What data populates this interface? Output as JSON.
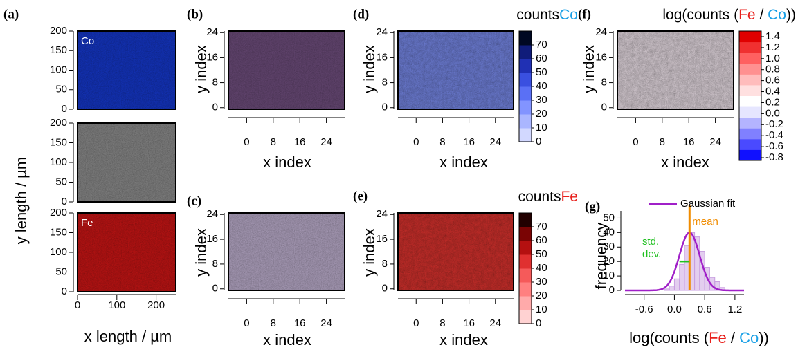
{
  "chart_data": [
    {
      "type": "image-stack",
      "tag": "(a)",
      "xlabel": "x length / µm",
      "ylabel": "y length / µm",
      "images": [
        {
          "text": "Co",
          "color": "#1436c8"
        },
        {
          "color": "#8a8a8a"
        },
        {
          "text": "Fe",
          "color": "#c81414"
        }
      ],
      "xlim": [
        0,
        250
      ],
      "ylim": [
        0,
        200
      ],
      "xticks": [
        0,
        100,
        200
      ],
      "yticks": [
        0,
        50,
        100,
        150,
        200
      ]
    },
    {
      "type": "image",
      "tag": "(b)",
      "xlabel": "x index",
      "ylabel": "y index",
      "color": "#6a4a78",
      "xlim": [
        -5.5,
        29.5
      ],
      "ylim": [
        -0.5,
        24.5
      ],
      "xticks": [
        0,
        8,
        16,
        24
      ],
      "yticks": [
        0,
        8,
        16,
        24
      ]
    },
    {
      "type": "image",
      "tag": "(c)",
      "xlabel": "x index",
      "ylabel": "y index",
      "color": "#b4a6c4",
      "xlim": [
        -5.5,
        29.5
      ],
      "ylim": [
        -0.5,
        24.5
      ],
      "xticks": [
        0,
        8,
        16,
        24
      ],
      "yticks": [
        0,
        8,
        16,
        24
      ]
    },
    {
      "type": "heatmap",
      "tag": "(d)",
      "xlabel": "x index",
      "ylabel": "y index",
      "color": "#7a8cf0",
      "title": [
        {
          "text": "counts",
          "color": "#000000"
        },
        {
          "text": "Co",
          "color": "#1aa0e6"
        }
      ],
      "xlim": [
        -5.5,
        29.5
      ],
      "ylim": [
        -0.5,
        24.5
      ],
      "xticks": [
        0,
        8,
        16,
        24
      ],
      "yticks": [
        0,
        8,
        16,
        24
      ],
      "clim": [
        0,
        80
      ],
      "cticks": [
        0,
        10,
        20,
        30,
        40,
        50,
        60,
        70
      ],
      "colors": [
        "#d2d8ff",
        "#aab6ff",
        "#8294ff",
        "#5a70f5",
        "#3a50e0",
        "#2030b4",
        "#101c7a",
        "#000822"
      ]
    },
    {
      "type": "heatmap",
      "tag": "(e)",
      "xlabel": "x index",
      "ylabel": "y index",
      "color": "#e2332e",
      "title": [
        {
          "text": "counts",
          "color": "#000000"
        },
        {
          "text": "Fe",
          "color": "#e8201c"
        }
      ],
      "xlim": [
        -5.5,
        29.5
      ],
      "ylim": [
        -0.5,
        24.5
      ],
      "xticks": [
        0,
        8,
        16,
        24
      ],
      "yticks": [
        0,
        8,
        16,
        24
      ],
      "clim": [
        0,
        80
      ],
      "cticks": [
        0,
        10,
        20,
        30,
        40,
        50,
        60,
        70
      ],
      "colors": [
        "#ffd2d2",
        "#ffaaaa",
        "#ff8080",
        "#f55a5a",
        "#e03030",
        "#b41010",
        "#7a0404",
        "#220000"
      ]
    },
    {
      "type": "heatmap",
      "tag": "(f)",
      "xlabel": "x index",
      "ylabel": "y index",
      "color": "#f2e6ee",
      "title": [
        {
          "text": "log(counts (",
          "color": "#000000"
        },
        {
          "text": "Fe",
          "color": "#e8201c"
        },
        {
          "text": " / ",
          "color": "#000000"
        },
        {
          "text": "Co",
          "color": "#1aa0e6"
        },
        {
          "text": "))",
          "color": "#000000"
        }
      ],
      "xlim": [
        -5.5,
        29.5
      ],
      "ylim": [
        -0.5,
        24.5
      ],
      "xticks": [
        0,
        8,
        16,
        24
      ],
      "yticks": [
        0,
        8,
        16,
        24
      ],
      "clim": [
        -0.85,
        1.5
      ],
      "cticks": [
        -0.8,
        -0.6,
        -0.4,
        -0.2,
        {
          "value": 0,
          "label": "0.0"
        },
        0.2,
        0.4,
        0.6,
        0.8,
        {
          "value": 1,
          "label": "1.0"
        },
        1.2,
        1.4
      ],
      "colors": [
        "#1010ff",
        "#4a4aff",
        "#8080ff",
        "#b4b4ff",
        "#e6e6ff",
        "#ffffff",
        "#ffe0e0",
        "#ffbcbc",
        "#ff9090",
        "#ff6060",
        "#f03030",
        "#e00000"
      ]
    },
    {
      "type": "histogram",
      "tag": "(g)",
      "xlabel": [
        {
          "text": "log(counts (",
          "color": "#000000"
        },
        {
          "text": "Fe",
          "color": "#e8201c"
        },
        {
          "text": " / ",
          "color": "#000000"
        },
        {
          "text": "Co",
          "color": "#1aa0e6"
        },
        {
          "text": "))",
          "color": "#000000"
        }
      ],
      "ylabel": "frequency",
      "legend": "Gaussian fit",
      "mean_label": "mean",
      "std_label": [
        "std.",
        "dev."
      ],
      "bins": [
        -0.2,
        -0.1,
        0,
        0.1,
        0.2,
        0.3,
        0.4,
        0.5,
        0.6,
        0.7,
        0.8,
        0.9,
        1.0
      ],
      "counts": [
        1,
        3,
        8,
        18,
        31,
        40,
        37,
        27,
        16,
        9,
        6,
        2
      ],
      "mean": 0.3,
      "std": 0.2,
      "amplitude": 40,
      "bar_color": "#c89ee0",
      "fit_color": "#a020c8",
      "mean_color": "#f08c00",
      "std_color": "#20c020",
      "xlim": [
        -0.98,
        1.38
      ],
      "ylim": [
        0,
        55
      ],
      "xticks": [
        -0.6,
        {
          "value": 0,
          "label": "0.0"
        },
        0.6,
        1.2
      ],
      "yticks": [
        0,
        10,
        20,
        30,
        40,
        50
      ]
    }
  ]
}
